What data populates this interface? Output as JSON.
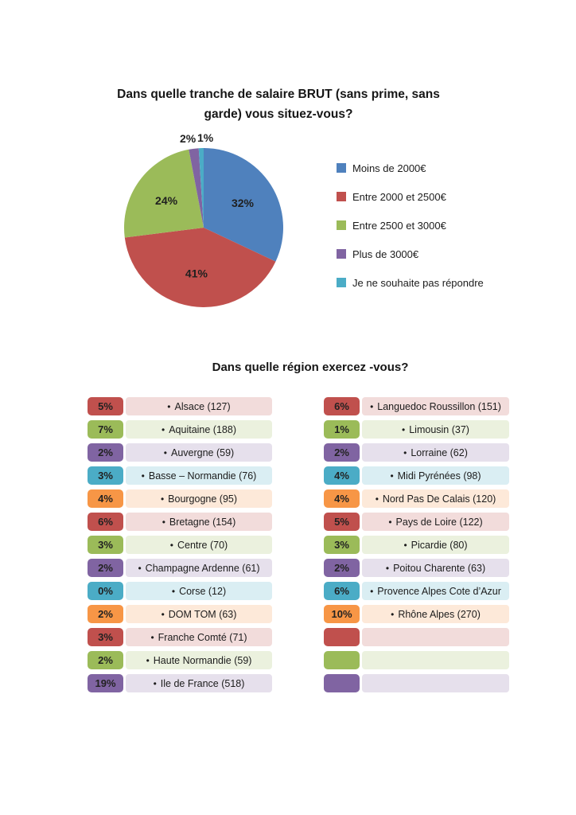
{
  "chart_data": [
    {
      "type": "pie",
      "title": "Dans quelle tranche de salaire BRUT (sans prime, sans garde) vous situez-vous?",
      "title_lines": [
        "Dans quelle tranche de salaire BRUT (sans prime, sans",
        "garde) vous situez-vous?"
      ],
      "categories": [
        "Moins de 2000€",
        "Entre 2000 et 2500€",
        "Entre 2500 et 3000€",
        "Plus de 3000€",
        "Je ne souhaite pas répondre"
      ],
      "values": [
        32,
        41,
        24,
        2,
        1
      ],
      "unit": "%",
      "data_labels": [
        "32%",
        "41%",
        "24%",
        "2%",
        "1%"
      ],
      "colors": [
        "#4F81BD",
        "#C0504D",
        "#9BBB59",
        "#8064A2",
        "#4BACC6"
      ],
      "legend_position": "right",
      "start_angle_deg": 0,
      "direction": "clockwise"
    },
    {
      "type": "table",
      "title": "Dans quelle région exercez -vous?",
      "bullet_char": "•",
      "palette": {
        "red": {
          "badge": "#C0504D",
          "tint": "#F2DCDB"
        },
        "green": {
          "badge": "#9BBB59",
          "tint": "#EBF1DE"
        },
        "purple": {
          "badge": "#8064A2",
          "tint": "#E6E0EC"
        },
        "teal": {
          "badge": "#4BACC6",
          "tint": "#DAEEF3"
        },
        "orange": {
          "badge": "#F79646",
          "tint": "#FDE9D9"
        }
      },
      "columns": [
        [
          {
            "pct": "5%",
            "region": "Alsace",
            "count": "127",
            "color": "red"
          },
          {
            "pct": "7%",
            "region": "Aquitaine",
            "count": "188",
            "color": "green"
          },
          {
            "pct": "2%",
            "region": "Auvergne",
            "count": "59",
            "color": "purple"
          },
          {
            "pct": "3%",
            "region": "Basse – Normandie",
            "count": "76",
            "color": "teal"
          },
          {
            "pct": "4%",
            "region": "Bourgogne",
            "count": "95",
            "color": "orange"
          },
          {
            "pct": "6%",
            "region": "Bretagne",
            "count": "154",
            "color": "red"
          },
          {
            "pct": "3%",
            "region": "Centre",
            "count": "70",
            "color": "green"
          },
          {
            "pct": "2%",
            "region": "Champagne Ardenne",
            "count": "61",
            "color": "purple"
          },
          {
            "pct": "0%",
            "region": "Corse",
            "count": "12",
            "color": "teal"
          },
          {
            "pct": "2%",
            "region": "DOM TOM",
            "count": "63",
            "color": "orange"
          },
          {
            "pct": "3%",
            "region": "Franche Comté",
            "count": "71",
            "color": "red"
          },
          {
            "pct": "2%",
            "region": "Haute Normandie",
            "count": "59",
            "color": "green"
          },
          {
            "pct": "19%",
            "region": "Ile de France",
            "count": "518",
            "color": "purple"
          }
        ],
        [
          {
            "pct": "6%",
            "region": "Languedoc Roussillon",
            "count": "151",
            "color": "red"
          },
          {
            "pct": "1%",
            "region": "Limousin",
            "count": "37",
            "color": "green"
          },
          {
            "pct": "2%",
            "region": "Lorraine",
            "count": "62",
            "color": "purple"
          },
          {
            "pct": "4%",
            "region": "Midi Pyrénées",
            "count": "98",
            "color": "teal"
          },
          {
            "pct": "4%",
            "region": "Nord Pas De Calais",
            "count": "120",
            "color": "orange"
          },
          {
            "pct": "5%",
            "region": "Pays de Loire",
            "count": "122",
            "color": "red"
          },
          {
            "pct": "3%",
            "region": "Picardie",
            "count": "80",
            "color": "green"
          },
          {
            "pct": "2%",
            "region": "Poitou Charente",
            "count": "63",
            "color": "purple"
          },
          {
            "pct": "6%",
            "region": "Provence Alpes Cote d’Azur",
            "count": "",
            "color": "teal"
          },
          {
            "pct": "10%",
            "region": "Rhône Alpes",
            "count": "270",
            "color": "orange"
          },
          {
            "pct": "",
            "region": "",
            "count": "",
            "color": "red"
          },
          {
            "pct": "",
            "region": "",
            "count": "",
            "color": "green"
          },
          {
            "pct": "",
            "region": "",
            "count": "",
            "color": "purple"
          }
        ]
      ]
    }
  ]
}
